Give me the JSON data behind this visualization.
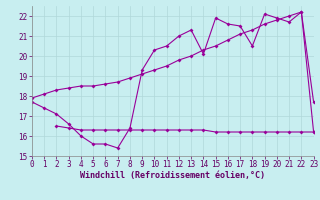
{
  "background_color": "#c8eef0",
  "grid_color": "#b0d8da",
  "line_color": "#990099",
  "xlabel": "Windchill (Refroidissement éolien,°C)",
  "xlim": [
    0,
    23
  ],
  "ylim": [
    15,
    22.5
  ],
  "yticks": [
    15,
    16,
    17,
    18,
    19,
    20,
    21,
    22
  ],
  "xticks": [
    0,
    1,
    2,
    3,
    4,
    5,
    6,
    7,
    8,
    9,
    10,
    11,
    12,
    13,
    14,
    15,
    16,
    17,
    18,
    19,
    20,
    21,
    22,
    23
  ],
  "line1_x": [
    0,
    1,
    2,
    3,
    4,
    5,
    6,
    7,
    8,
    9,
    10,
    11,
    12,
    13,
    14,
    15,
    16,
    17,
    18,
    19,
    20,
    21,
    22,
    23
  ],
  "line1_y": [
    17.7,
    17.4,
    17.1,
    16.6,
    16.0,
    15.6,
    15.6,
    15.4,
    16.4,
    19.3,
    20.3,
    20.5,
    21.0,
    21.3,
    20.1,
    21.9,
    21.6,
    21.5,
    20.5,
    22.1,
    21.9,
    21.7,
    22.2,
    17.7
  ],
  "line2_x": [
    0,
    1,
    2,
    3,
    4,
    5,
    6,
    7,
    8,
    9,
    10,
    11,
    12,
    13,
    14,
    15,
    16,
    17,
    18,
    19,
    20,
    21,
    22,
    23
  ],
  "line2_y": [
    17.9,
    18.1,
    18.3,
    18.4,
    18.5,
    18.5,
    18.6,
    18.7,
    18.9,
    19.1,
    19.3,
    19.5,
    19.8,
    20.0,
    20.3,
    20.5,
    20.8,
    21.1,
    21.3,
    21.6,
    21.8,
    22.0,
    22.2,
    16.2
  ],
  "line3_x": [
    2,
    3,
    4,
    5,
    6,
    7,
    8,
    9,
    10,
    11,
    12,
    13,
    14,
    15,
    16,
    17,
    18,
    19,
    20,
    21,
    22,
    23
  ],
  "line3_y": [
    16.5,
    16.4,
    16.3,
    16.3,
    16.3,
    16.3,
    16.3,
    16.3,
    16.3,
    16.3,
    16.3,
    16.3,
    16.3,
    16.2,
    16.2,
    16.2,
    16.2,
    16.2,
    16.2,
    16.2,
    16.2,
    16.2
  ],
  "marker": "D",
  "markersize": 2.0,
  "linewidth": 0.8,
  "xlabel_fontsize": 6,
  "tick_fontsize": 5.5,
  "label_color": "#660066"
}
